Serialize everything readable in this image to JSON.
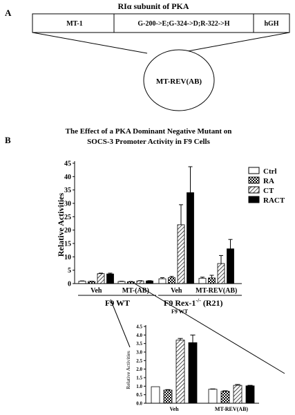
{
  "panel_a": {
    "letter": "A",
    "title": "RIα subunit of PKA",
    "segments": [
      "MT-1",
      "G-200->E;G-324->D;R-322->H",
      "hGH"
    ],
    "construct_label": "MT-REV(AB)"
  },
  "panel_b": {
    "letter": "B",
    "title_line1": "The Effect of a PKA Dominant Negative Mutant on",
    "title_line2": "SOCS-3 Promoter Activity in F9 Cells"
  },
  "chart_data": [
    {
      "type": "bar",
      "ylabel": "Relative Activities",
      "ylim": [
        0,
        45
      ],
      "yticks": [
        "0",
        "5",
        "10",
        "15",
        "20",
        "25",
        "30",
        "35",
        "40",
        "45"
      ],
      "legend": [
        "Ctrl",
        "RA",
        "CT",
        "RACT"
      ],
      "legend_position": "top-right",
      "groups": [
        {
          "label": "Veh",
          "cell_line": "F9 WT",
          "values": [
            0.9,
            0.8,
            3.7,
            3.6
          ],
          "errors": [
            0.1,
            0.1,
            0.2,
            0.3
          ]
        },
        {
          "label": "MT-(AB)",
          "cell_line": "F9 WT",
          "values": [
            0.8,
            0.7,
            1.0,
            1.0
          ],
          "errors": [
            0.1,
            0.1,
            0.1,
            0.1
          ]
        },
        {
          "label": "Veh",
          "cell_line": "F9 Rex-1-/- (R21)",
          "values": [
            1.8,
            2.2,
            22.0,
            34.0
          ],
          "errors": [
            0.4,
            0.5,
            7.5,
            9.7
          ]
        },
        {
          "label": "MT-REV(AB)",
          "cell_line": "F9 Rex-1-/- (R21)",
          "values": [
            2.0,
            2.1,
            7.5,
            13.0
          ],
          "errors": [
            0.4,
            1.0,
            3.0,
            3.5
          ]
        }
      ],
      "cell_lines": [
        "F9 WT",
        "F9 Rex-1",
        "-/-",
        " (R21)"
      ],
      "sublabel": "F9 WT"
    },
    {
      "type": "bar",
      "ylabel": "Relative Activities",
      "ylim": [
        0,
        4.5
      ],
      "yticks": [
        "0.0",
        "0.5",
        "1.0",
        "1.5",
        "2.0",
        "2.5",
        "3.0",
        "3.5",
        "4.0",
        "4.5"
      ],
      "groups": [
        {
          "label": "Veh",
          "values": [
            0.97,
            0.77,
            3.7,
            3.55
          ],
          "errors": [
            0.0,
            0.03,
            0.1,
            0.45
          ]
        },
        {
          "label": "MT-REV(AB)",
          "values": [
            0.82,
            0.7,
            1.05,
            1.02
          ],
          "errors": [
            0.02,
            0.03,
            0.05,
            0.03
          ]
        }
      ]
    }
  ]
}
